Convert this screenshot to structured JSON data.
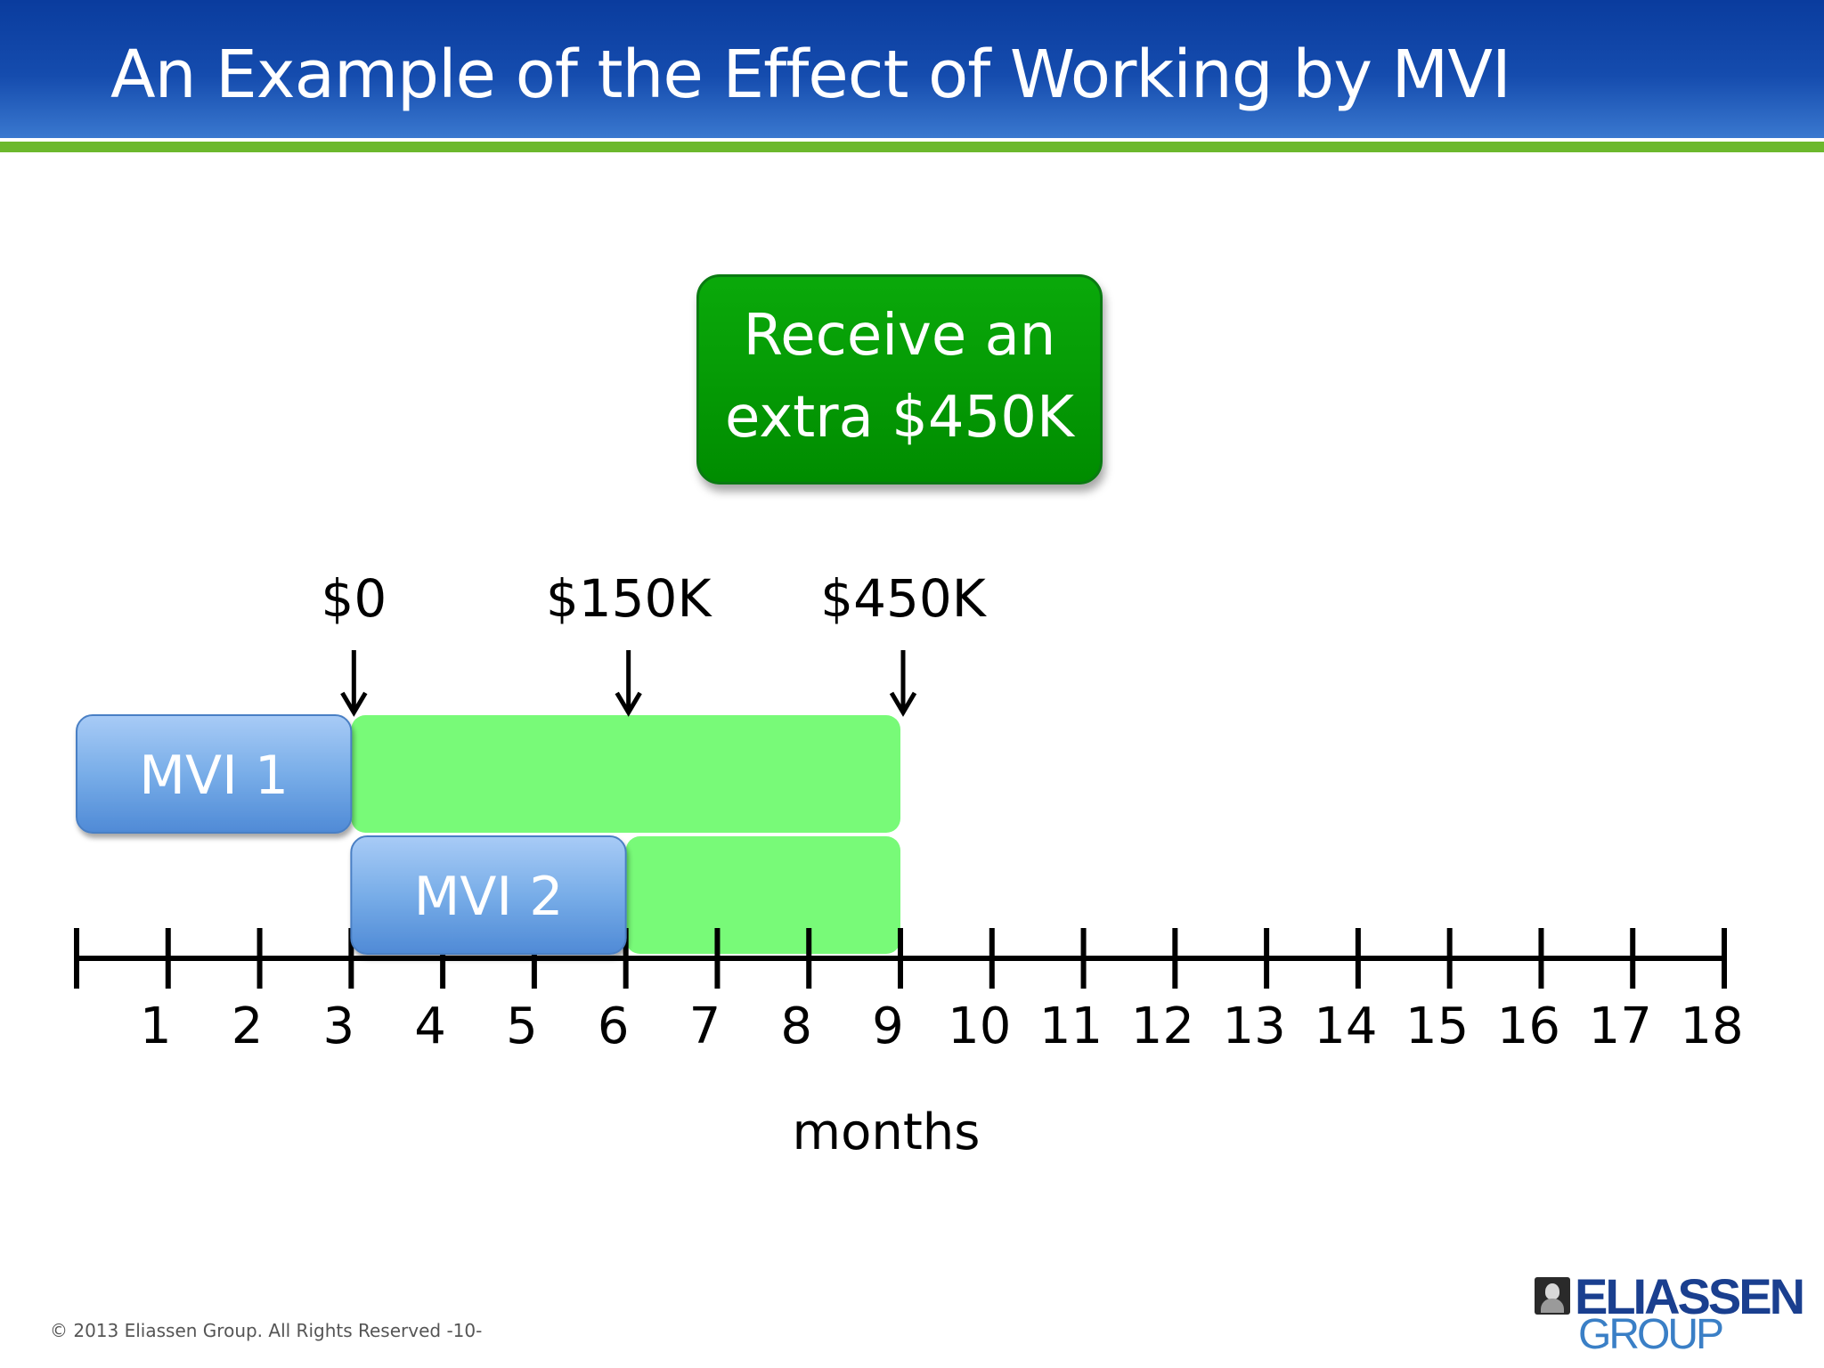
{
  "header": {
    "title": "An Example of the Effect of Working by MVI"
  },
  "callout": {
    "line1": "Receive an",
    "line2": "extra $450K"
  },
  "timeline": {
    "axis_label": "months",
    "start": 0,
    "end": 18,
    "tick_labels": [
      "1",
      "2",
      "3",
      "4",
      "5",
      "6",
      "7",
      "8",
      "9",
      "10",
      "11",
      "12",
      "13",
      "14",
      "15",
      "16",
      "17",
      "18"
    ],
    "bars": [
      {
        "label": "MVI 1",
        "start": 0,
        "end": 3,
        "row": 0,
        "kind": "mvi"
      },
      {
        "label": "",
        "start": 3,
        "end": 9,
        "row": 0,
        "kind": "value"
      },
      {
        "label": "MVI 2",
        "start": 3,
        "end": 6,
        "row": 1,
        "kind": "mvi"
      },
      {
        "label": "",
        "start": 6,
        "end": 9,
        "row": 1,
        "kind": "value"
      }
    ],
    "markers": [
      {
        "label": "$0",
        "month": 3
      },
      {
        "label": "$150K",
        "month": 6
      },
      {
        "label": "$450K",
        "month": 9
      }
    ]
  },
  "colors": {
    "header_blue": "#1247a8",
    "header_green": "#6cb82d",
    "callout_green": "#009a00",
    "value_green": "#78fa78",
    "mvi_blue": "#6fa7e6"
  },
  "footer": {
    "copyright": "© 2013 Eliassen Group. All Rights Reserved -10-",
    "logo_top": "ELIASSEN",
    "logo_bottom": "GROUP"
  }
}
